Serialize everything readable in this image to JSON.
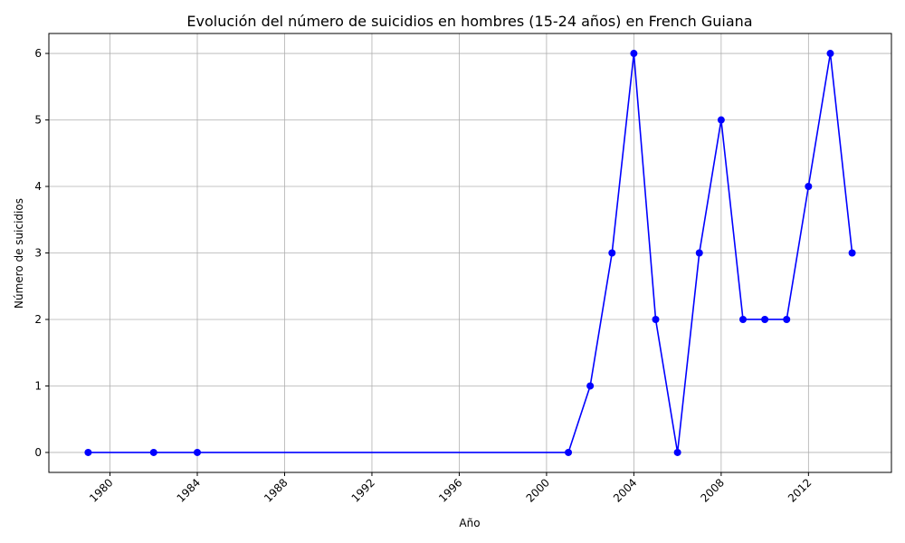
{
  "chart_data": {
    "type": "line",
    "title": "Evolución del número de suicidios en hombres (15-24 años) en French Guiana",
    "xlabel": "Año",
    "ylabel": "Número de suicidios",
    "xlim": [
      1977.2,
      2015.8
    ],
    "ylim": [
      -0.3,
      6.3
    ],
    "xticks": [
      1980,
      1984,
      1988,
      1992,
      1996,
      2000,
      2004,
      2008,
      2012
    ],
    "yticks": [
      0,
      1,
      2,
      3,
      4,
      5,
      6
    ],
    "grid": true,
    "series": [
      {
        "color": "#0000ff",
        "marker": "circle",
        "points": [
          {
            "x": 1979,
            "y": 0
          },
          {
            "x": 1982,
            "y": 0
          },
          {
            "x": 1984,
            "y": 0
          },
          {
            "x": 2001,
            "y": 0
          },
          {
            "x": 2002,
            "y": 1
          },
          {
            "x": 2003,
            "y": 3
          },
          {
            "x": 2004,
            "y": 6
          },
          {
            "x": 2005,
            "y": 2
          },
          {
            "x": 2006,
            "y": 0
          },
          {
            "x": 2007,
            "y": 3
          },
          {
            "x": 2008,
            "y": 5
          },
          {
            "x": 2009,
            "y": 2
          },
          {
            "x": 2010,
            "y": 2
          },
          {
            "x": 2011,
            "y": 2
          },
          {
            "x": 2012,
            "y": 4
          },
          {
            "x": 2013,
            "y": 6
          },
          {
            "x": 2014,
            "y": 3
          }
        ]
      }
    ]
  }
}
